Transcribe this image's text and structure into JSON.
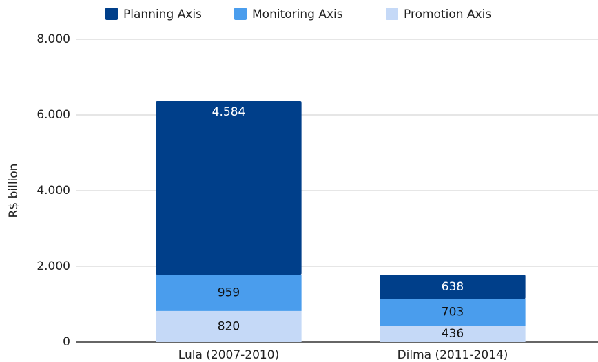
{
  "chart_data": {
    "type": "stacked_bar",
    "y_label": "R$ billion",
    "categories": [
      "Lula (2007-2010)",
      "Dilma (2011-2014)"
    ],
    "series": [
      {
        "name": "Planning Axis",
        "color": "#003f8a",
        "values": [
          4584,
          638
        ],
        "value_labels": [
          "4.584",
          "638"
        ]
      },
      {
        "name": "Monitoring Axis",
        "color": "#4a9ded",
        "values": [
          959,
          703
        ]
      },
      {
        "name": "Promotion Axis",
        "color": "#c5d9f7",
        "values": [
          820,
          436
        ]
      }
    ],
    "ylim": [
      0,
      8000
    ],
    "yticks": [
      0,
      {
        "value": 2000,
        "label": "2.000"
      },
      {
        "value": 4000,
        "label": "4.000"
      },
      {
        "value": 6000,
        "label": "6.000"
      },
      {
        "value": 8000,
        "label": "8.000"
      }
    ],
    "grid": true
  }
}
